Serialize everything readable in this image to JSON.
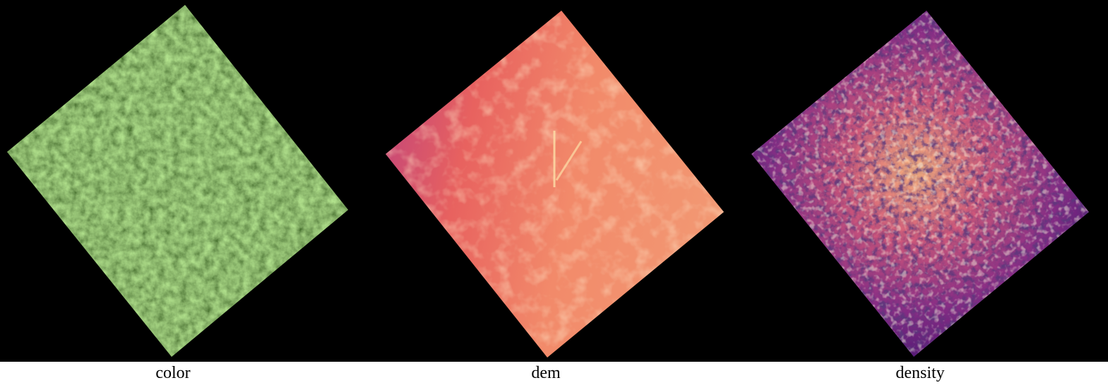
{
  "panels": [
    {
      "id": "color",
      "label": "color",
      "raster_type": "rgb-orthophoto",
      "palette": [
        "#2b4a1e",
        "#4f7a34",
        "#7ea55a",
        "#b6cf8a",
        "#1b2a12"
      ]
    },
    {
      "id": "dem",
      "label": "dem",
      "raster_type": "elevation",
      "palette": [
        "#c2447a",
        "#e8625f",
        "#f28a6a",
        "#f7a579",
        "#fde0a8"
      ]
    },
    {
      "id": "density",
      "label": "density",
      "raster_type": "point-density",
      "palette": [
        "#1a0b33",
        "#4b1573",
        "#8a2d86",
        "#d1587a",
        "#f6b27c",
        "#fcf3c0"
      ]
    }
  ]
}
